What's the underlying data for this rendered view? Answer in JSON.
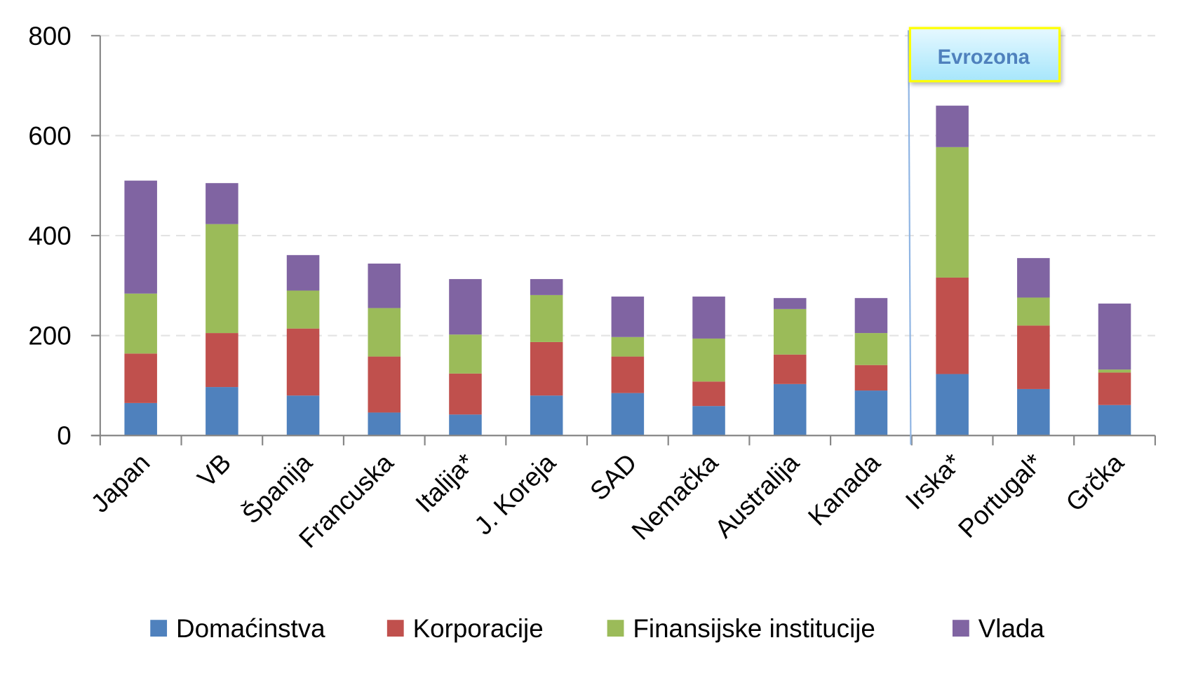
{
  "chart_data": {
    "type": "bar",
    "stacked": true,
    "title": "",
    "xlabel": "",
    "ylabel": "",
    "ylim": [
      0,
      800
    ],
    "yticks": [
      "0",
      "200",
      "400",
      "600",
      "800"
    ],
    "grid": true,
    "legend_position": "bottom",
    "categories": [
      "Japan",
      "VB",
      "Španija",
      "Francuska",
      "Italija*",
      "J. Koreja",
      "SAD",
      "Nemačka",
      "Australija",
      "Kanada",
      "Irska*",
      "Portugal*",
      "Grčka"
    ],
    "series": [
      {
        "name": "Domaćinstva",
        "color": "#4F81BD",
        "values": [
          65,
          97,
          80,
          46,
          42,
          80,
          85,
          59,
          103,
          90,
          123,
          93,
          61
        ]
      },
      {
        "name": "Korporacije",
        "color": "#C0504D",
        "values": [
          99,
          108,
          134,
          112,
          82,
          107,
          73,
          49,
          59,
          51,
          193,
          127,
          65
        ]
      },
      {
        "name": "Finansijske institucije",
        "color": "#9BBB59",
        "values": [
          120,
          218,
          76,
          97,
          78,
          94,
          39,
          86,
          91,
          64,
          261,
          56,
          6
        ]
      },
      {
        "name": "Vlada",
        "color": "#8064A2",
        "values": [
          226,
          82,
          71,
          89,
          111,
          32,
          81,
          84,
          22,
          70,
          83,
          79,
          132
        ]
      }
    ],
    "annotation": "Evrozona"
  }
}
